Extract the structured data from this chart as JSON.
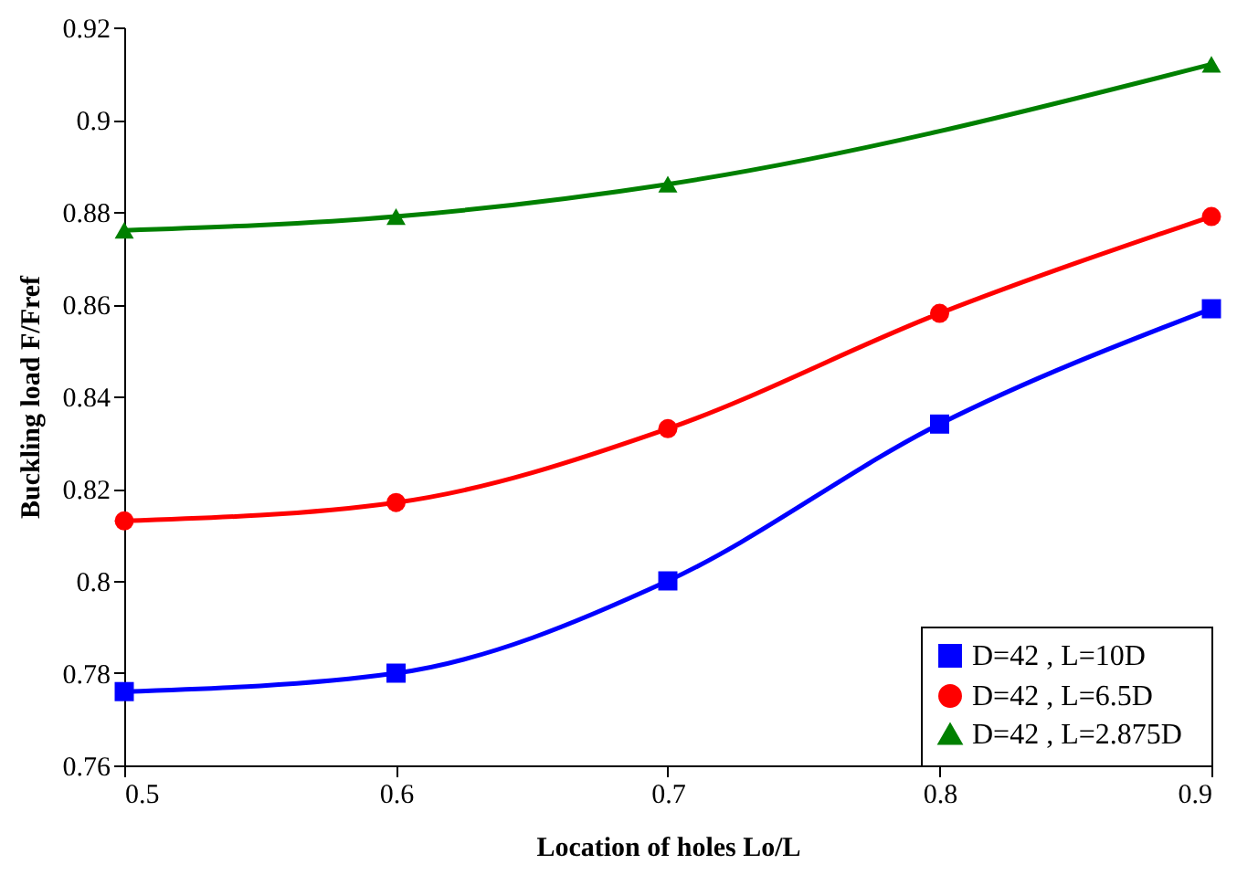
{
  "chart_data": {
    "type": "line",
    "xlabel": "Location of holes Lo/L",
    "ylabel": "Buckling load F/Fref",
    "x": [
      0.5,
      0.6,
      0.7,
      0.8,
      0.9
    ],
    "series": [
      {
        "name": "D=42  ,  L=10D",
        "color": "#0000ff",
        "marker": "square",
        "values": [
          0.776,
          0.78,
          0.8,
          0.834,
          0.859
        ]
      },
      {
        "name": "D=42  ,  L=6.5D",
        "color": "#ff0000",
        "marker": "circle",
        "values": [
          0.813,
          0.817,
          0.833,
          0.858,
          0.879
        ]
      },
      {
        "name": "D=42  ,  L=2.875D",
        "color": "#008000",
        "marker": "triangle",
        "x": [
          0.5,
          0.6,
          0.7,
          0.9
        ],
        "values": [
          0.876,
          0.879,
          0.886,
          0.912
        ]
      }
    ],
    "xlim": [
      0.5,
      0.9
    ],
    "xticks": [
      0.5,
      0.6,
      0.7,
      0.8,
      0.9
    ],
    "ylim": [
      0.76,
      0.92
    ],
    "yticks": [
      0.76,
      0.78,
      0.8,
      0.82,
      0.84,
      0.86,
      0.88,
      0.9,
      0.92
    ],
    "grid": false,
    "legend": "bottom right",
    "line_style": "solid"
  }
}
